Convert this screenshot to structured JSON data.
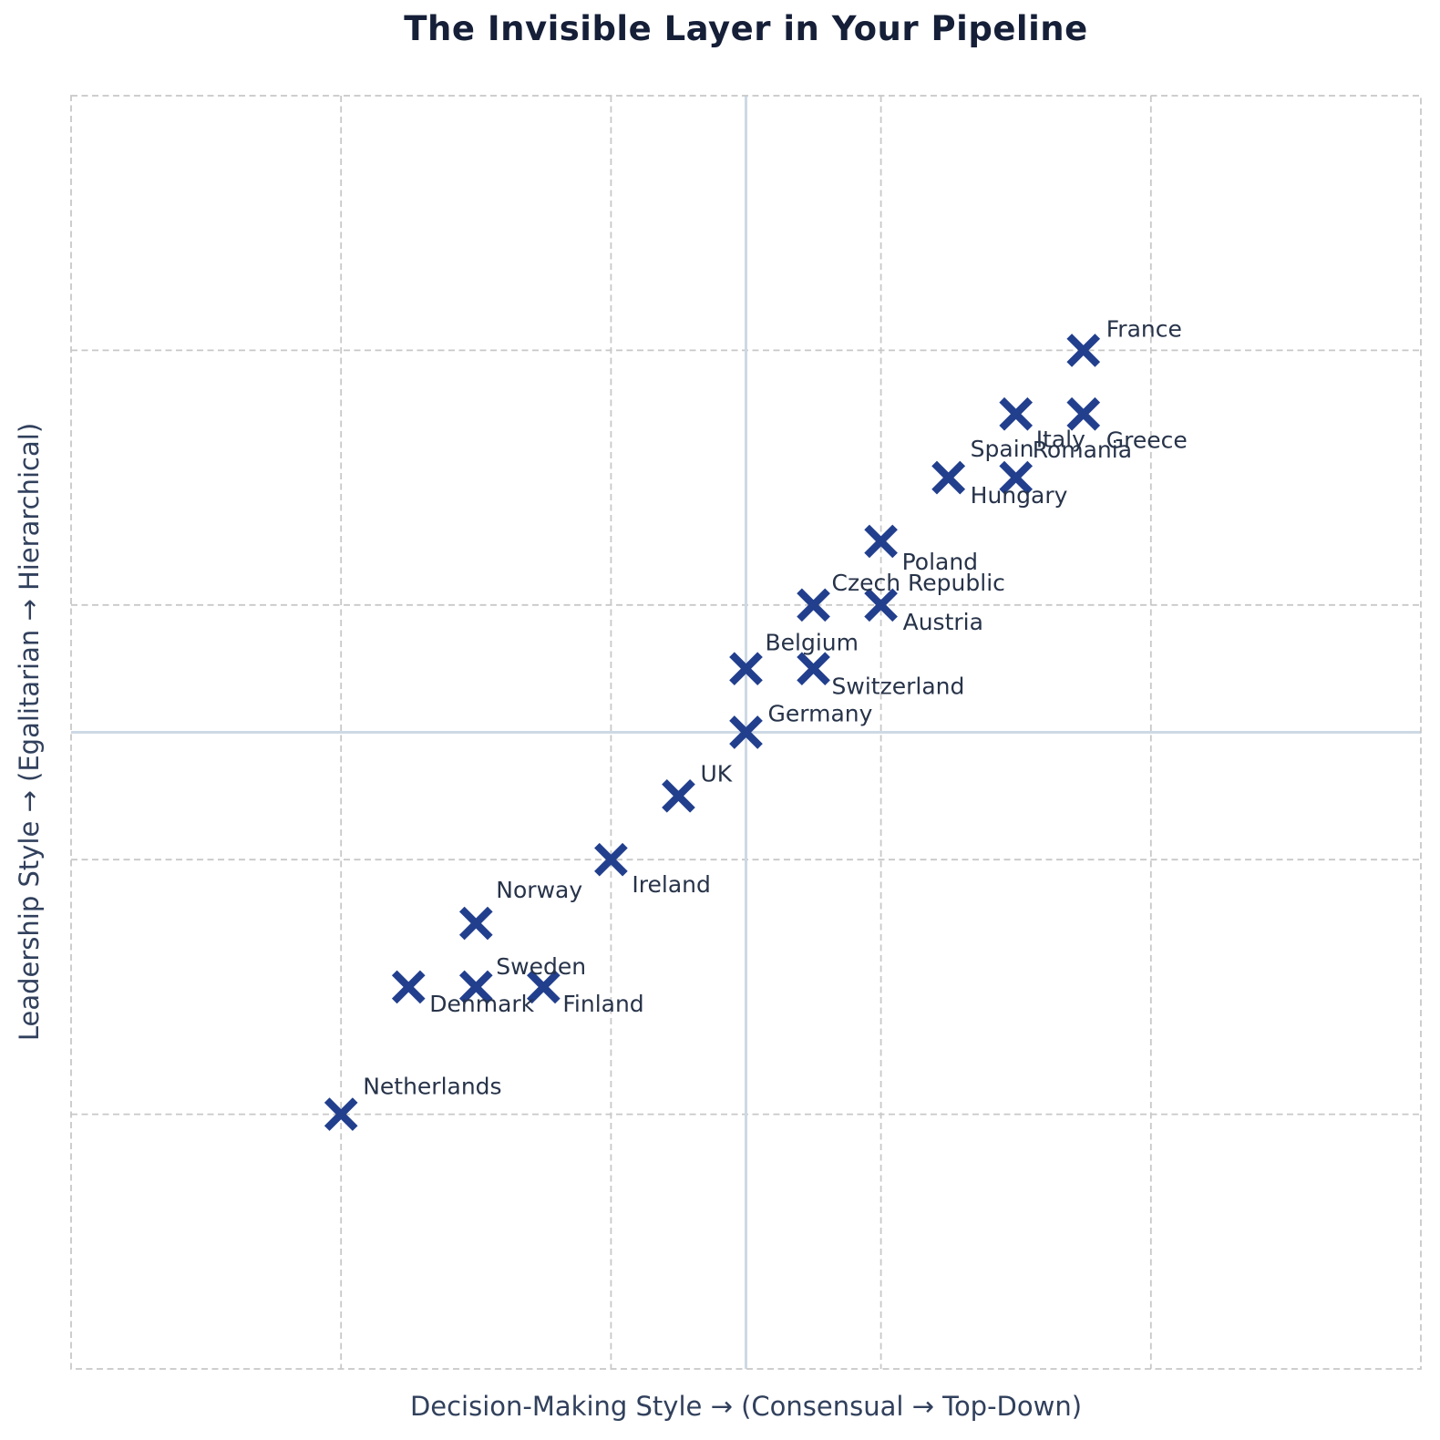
{
  "chart_data": {
    "type": "scatter",
    "title": "The Invisible Layer in Your Pipeline",
    "xlabel": "Decision-Making Style  →  (Consensual → Top-Down)",
    "ylabel": "Leadership Style  →  (Egalitarian → Hierarchical)",
    "xlim": [
      -2.5,
      2.5
    ],
    "ylim": [
      -2.5,
      2.5
    ],
    "grid": {
      "x_positions": [
        -1.5,
        -0.5,
        0.5,
        1.5
      ],
      "y_positions": [
        -1.5,
        -0.5,
        0.5,
        1.5
      ],
      "style": "dashed",
      "border": "dashed"
    },
    "center_lines": {
      "x": 0,
      "y": 0
    },
    "marker": "x",
    "legend": "none",
    "points": [
      {
        "label": "France",
        "x": 1.25,
        "y": 1.5,
        "label_offset": [
          25,
          -15
        ]
      },
      {
        "label": "Italy",
        "x": 1.0,
        "y": 1.25,
        "label_offset": [
          22,
          36
        ]
      },
      {
        "label": "Greece",
        "x": 1.25,
        "y": 1.25,
        "label_offset": [
          25,
          37
        ]
      },
      {
        "label": "Spain",
        "x": 0.75,
        "y": 1.0,
        "label_offset": [
          24,
          -23
        ]
      },
      {
        "label": "Hungary",
        "x": 0.75,
        "y": 1.0,
        "label_offset": [
          24,
          28
        ]
      },
      {
        "label": "Romania",
        "x": 1.0,
        "y": 1.0,
        "label_offset": [
          18,
          -22
        ]
      },
      {
        "label": "Poland",
        "x": 0.5,
        "y": 0.75,
        "label_offset": [
          23,
          31
        ]
      },
      {
        "label": "Czech Republic",
        "x": 0.25,
        "y": 0.5,
        "label_offset": [
          20,
          -16
        ]
      },
      {
        "label": "Austria",
        "x": 0.5,
        "y": 0.5,
        "label_offset": [
          24,
          27
        ]
      },
      {
        "label": "Belgium",
        "x": 0.0,
        "y": 0.25,
        "label_offset": [
          21,
          -20
        ]
      },
      {
        "label": "Switzerland",
        "x": 0.25,
        "y": 0.25,
        "label_offset": [
          20,
          28
        ]
      },
      {
        "label": "Germany",
        "x": 0.0,
        "y": 0.0,
        "label_offset": [
          24,
          -12
        ]
      },
      {
        "label": "UK",
        "x": -0.25,
        "y": -0.25,
        "label_offset": [
          24,
          -16
        ]
      },
      {
        "label": "Ireland",
        "x": -0.5,
        "y": -0.5,
        "label_offset": [
          23,
          36
        ]
      },
      {
        "label": "Norway",
        "x": -1.0,
        "y": -0.75,
        "label_offset": [
          22,
          -28
        ]
      },
      {
        "label": "Sweden",
        "x": -1.0,
        "y": -1.0,
        "label_offset": [
          22,
          -14
        ]
      },
      {
        "label": "Denmark",
        "x": -1.25,
        "y": -1.0,
        "label_offset": [
          23,
          27
        ]
      },
      {
        "label": "Finland",
        "x": -0.75,
        "y": -1.0,
        "label_offset": [
          21,
          27
        ]
      },
      {
        "label": "Netherlands",
        "x": -1.5,
        "y": -1.5,
        "label_offset": [
          24,
          -22
        ]
      }
    ],
    "colors": {
      "marker": "#223f8e",
      "point_label": "#273349",
      "title": "#151f38",
      "axis_label": "#31405c",
      "grid": "#c8c8c8",
      "center_line": "#cdd9e4",
      "background": "#ffffff"
    }
  }
}
